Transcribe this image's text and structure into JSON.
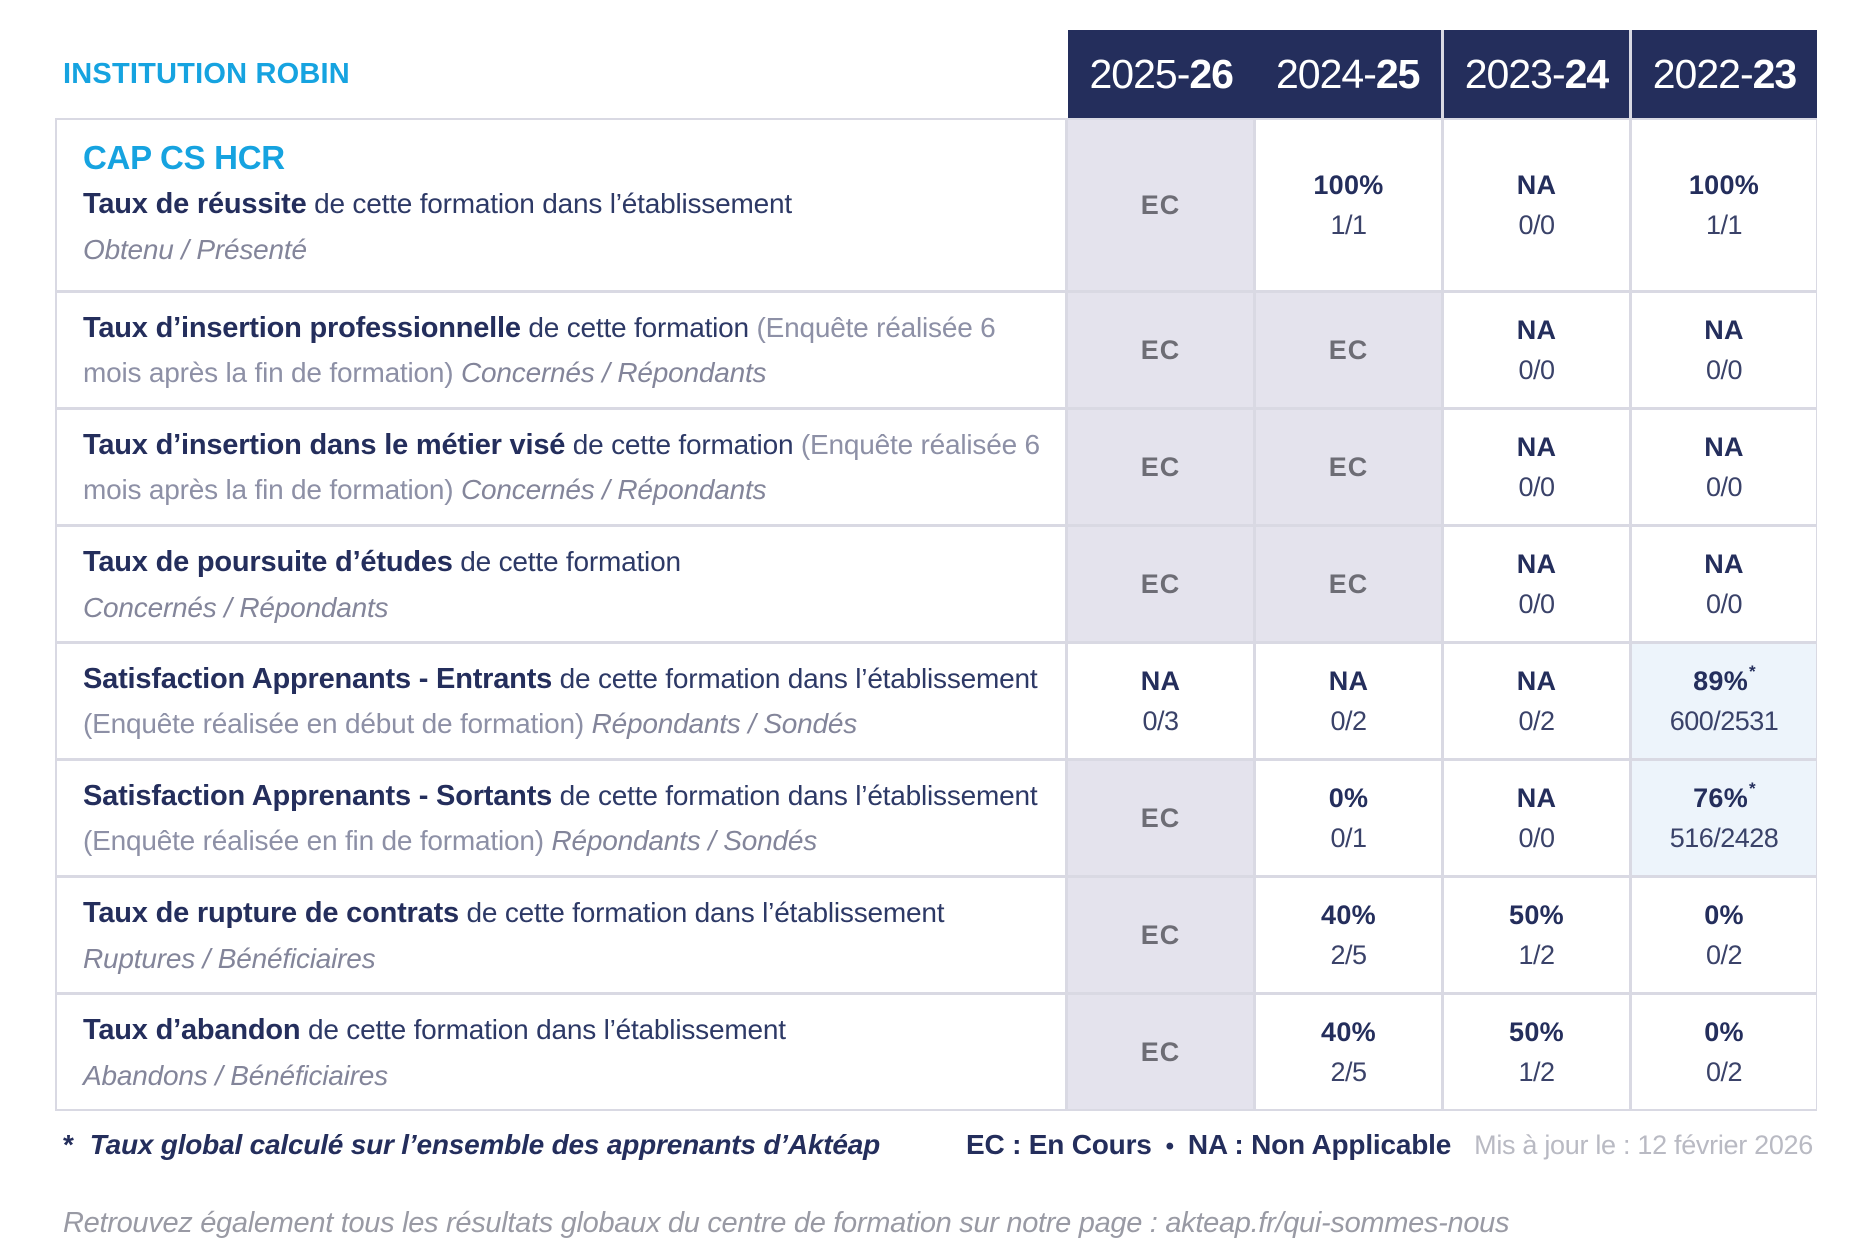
{
  "header": {
    "institution": "INSTITUTION ROBIN",
    "program": "CAP CS HCR",
    "years": [
      {
        "prefix": "2025-",
        "suffix": "26"
      },
      {
        "prefix": "2024-",
        "suffix": "25"
      },
      {
        "prefix": "2023-",
        "suffix": "24"
      },
      {
        "prefix": "2022-",
        "suffix": "23"
      }
    ]
  },
  "rows": [
    {
      "label": {
        "bold": "Taux de réussite",
        "normal": " de cette formation dans l’établissement",
        "paren": "",
        "sub": "Obtenu / Présenté",
        "sub_inline": false
      },
      "cells": [
        {
          "main": "EC",
          "style": "ec"
        },
        {
          "main": "100%",
          "sub": "1/1"
        },
        {
          "main": "NA",
          "sub": "0/0"
        },
        {
          "main": "100%",
          "sub": "1/1"
        }
      ]
    },
    {
      "label": {
        "bold": "Taux d’insertion professionnelle",
        "normal": " de cette formation ",
        "paren": "(Enquête réalisée 6 mois après la fin de formation) ",
        "sub": "Concernés / Répondants",
        "sub_inline": true
      },
      "cells": [
        {
          "main": "EC",
          "style": "ec"
        },
        {
          "main": "EC",
          "style": "ec"
        },
        {
          "main": "NA",
          "sub": "0/0"
        },
        {
          "main": "NA",
          "sub": "0/0"
        }
      ]
    },
    {
      "label": {
        "bold": "Taux d’insertion dans le métier visé",
        "normal": " de cette formation ",
        "paren": "(Enquête réalisée 6 mois après la fin de formation) ",
        "sub": "Concernés / Répondants",
        "sub_inline": true
      },
      "cells": [
        {
          "main": "EC",
          "style": "ec"
        },
        {
          "main": "EC",
          "style": "ec"
        },
        {
          "main": "NA",
          "sub": "0/0"
        },
        {
          "main": "NA",
          "sub": "0/0"
        }
      ]
    },
    {
      "label": {
        "bold": "Taux de poursuite d’études",
        "normal": " de cette formation",
        "paren": "",
        "sub": "Concernés / Répondants",
        "sub_inline": false
      },
      "cells": [
        {
          "main": "EC",
          "style": "ec"
        },
        {
          "main": "EC",
          "style": "ec"
        },
        {
          "main": "NA",
          "sub": "0/0"
        },
        {
          "main": "NA",
          "sub": "0/0"
        }
      ]
    },
    {
      "label": {
        "bold": "Satisfaction Apprenants - Entrants",
        "normal": " de cette formation dans l’établissement ",
        "paren": "(Enquête réalisée en début de formation) ",
        "sub": "Répondants / Sondés",
        "sub_inline": true
      },
      "cells": [
        {
          "main": "NA",
          "sub": "0/3"
        },
        {
          "main": "NA",
          "sub": "0/2"
        },
        {
          "main": "NA",
          "sub": "0/2"
        },
        {
          "main": "89%",
          "star": "*",
          "sub": "600/2531",
          "style": "highlight"
        }
      ]
    },
    {
      "label": {
        "bold": "Satisfaction Apprenants - Sortants",
        "normal": " de cette formation dans l’établissement ",
        "paren": "(Enquête réalisée en fin de formation) ",
        "sub": "Répondants / Sondés",
        "sub_inline": true
      },
      "cells": [
        {
          "main": "EC",
          "style": "ec"
        },
        {
          "main": "0%",
          "sub": "0/1"
        },
        {
          "main": "NA",
          "sub": "0/0"
        },
        {
          "main": "76%",
          "star": "*",
          "sub": "516/2428",
          "style": "highlight"
        }
      ]
    },
    {
      "label": {
        "bold": "Taux de rupture de contrats",
        "normal": " de cette formation dans l’établissement",
        "paren": "",
        "sub": "Ruptures / Bénéficiaires",
        "sub_inline": false
      },
      "cells": [
        {
          "main": "EC",
          "style": "ec"
        },
        {
          "main": "40%",
          "sub": "2/5"
        },
        {
          "main": "50%",
          "sub": "1/2"
        },
        {
          "main": "0%",
          "sub": "0/2"
        }
      ]
    },
    {
      "label": {
        "bold": "Taux d’abandon",
        "normal": " de cette formation dans l’établissement",
        "paren": "",
        "sub": "Abandons / Bénéficiaires",
        "sub_inline": false
      },
      "cells": [
        {
          "main": "EC",
          "style": "ec"
        },
        {
          "main": "40%",
          "sub": "2/5"
        },
        {
          "main": "50%",
          "sub": "1/2"
        },
        {
          "main": "0%",
          "sub": "0/2"
        }
      ]
    }
  ],
  "footer": {
    "star": "*",
    "note": "Taux global calculé sur l’ensemble des apprenants d’Aktéap",
    "legend_ec": "EC : En Cours",
    "legend_sep": "•",
    "legend_na": "NA : Non Applicable",
    "updated": "Mis à jour le : 12 février 2026",
    "bottom": "Retrouvez également tous les résultats globaux du centre de formation sur notre page : akteap.fr/qui-sommes-nous"
  },
  "colors": {
    "navy": "#242e5c",
    "cyan": "#16a3e0",
    "ec_bg": "#e4e3ed",
    "highlight_bg": "#edf4fb",
    "border": "#d9d9e3"
  }
}
